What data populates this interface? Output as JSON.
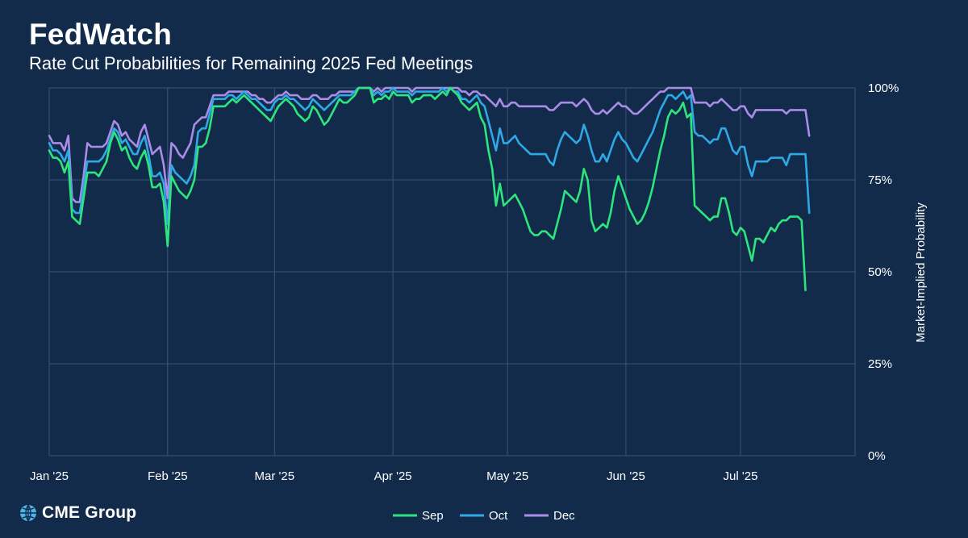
{
  "header": {
    "title": "FedWatch",
    "subtitle": "Rate Cut Probabilities for Remaining 2025 Fed Meetings"
  },
  "logo": {
    "text": "CME Group",
    "icon": "globe-icon"
  },
  "colors": {
    "background": "#132b4b",
    "grid": "#3a5576",
    "sep": "#2ee57d",
    "oct": "#2fa8e6",
    "dec": "#a98ce8"
  },
  "chart_data": {
    "type": "line",
    "title": "FedWatch",
    "subtitle": "Rate Cut Probabilities for Remaining 2025 Fed Meetings",
    "xlabel": "",
    "ylabel": "Market-Implied Probability",
    "x_ticks": [
      "Jan '25",
      "Feb '25",
      "Mar '25",
      "Apr '25",
      "May '25",
      "Jun '25",
      "Jul '25"
    ],
    "x_tick_days": [
      0,
      31,
      59,
      90,
      120,
      151,
      181
    ],
    "x_range_days": [
      0,
      211
    ],
    "y_ticks": [
      "0%",
      "25%",
      "50%",
      "75%",
      "100%"
    ],
    "y_tick_values": [
      0,
      25,
      50,
      75,
      100
    ],
    "ylim": [
      0,
      100
    ],
    "grid": true,
    "legend_position": "bottom-center",
    "x_days": [
      0,
      1,
      2,
      3,
      4,
      5,
      6,
      7,
      8,
      9,
      10,
      11,
      12,
      13,
      14,
      15,
      16,
      17,
      18,
      19,
      20,
      21,
      22,
      23,
      24,
      25,
      26,
      27,
      28,
      29,
      30,
      31,
      32,
      33,
      34,
      35,
      36,
      37,
      38,
      39,
      40,
      41,
      42,
      43,
      44,
      45,
      46,
      47,
      48,
      49,
      50,
      51,
      52,
      53,
      54,
      55,
      56,
      57,
      58,
      59,
      60,
      61,
      62,
      63,
      64,
      65,
      66,
      67,
      68,
      69,
      70,
      71,
      72,
      73,
      74,
      75,
      76,
      77,
      78,
      79,
      80,
      81,
      82,
      83,
      84,
      85,
      86,
      87,
      88,
      89,
      90,
      91,
      92,
      93,
      94,
      95,
      96,
      97,
      98,
      99,
      100,
      101,
      102,
      103,
      104,
      105,
      106,
      107,
      108,
      109,
      110,
      111,
      112,
      113,
      114,
      115,
      116,
      117,
      118,
      119,
      120,
      121,
      122,
      123,
      124,
      125,
      126,
      127,
      128,
      129,
      130,
      131,
      132,
      133,
      134,
      135,
      136,
      137,
      138,
      139,
      140,
      141,
      142,
      143,
      144,
      145,
      146,
      147,
      148,
      149,
      150,
      151,
      152,
      153,
      154,
      155,
      156,
      157,
      158,
      159,
      160,
      161,
      162,
      163,
      164,
      165,
      166,
      167,
      168,
      169,
      170,
      171,
      172,
      173,
      174,
      175,
      176,
      177,
      178,
      179,
      180,
      181,
      182,
      183,
      184,
      185,
      186,
      187,
      188,
      189,
      190,
      191,
      192,
      193,
      194,
      195,
      196,
      197,
      198,
      199,
      200,
      201,
      202,
      203,
      204,
      205,
      206,
      207,
      208,
      209,
      210,
      211
    ],
    "series": [
      {
        "name": "Sep",
        "values": [
          83,
          81,
          81,
          80,
          77,
          80,
          65,
          64,
          63,
          70,
          77,
          77,
          77,
          76,
          78,
          80,
          85,
          88,
          86,
          83,
          84,
          81,
          79,
          78,
          81,
          83,
          79,
          73,
          73,
          74,
          69,
          57,
          76,
          74,
          72,
          71,
          70,
          72,
          75,
          84,
          84,
          85,
          89,
          95,
          95,
          95,
          95,
          96,
          97,
          96,
          97,
          98,
          97,
          96,
          95,
          94,
          93,
          92,
          91,
          93,
          95,
          96,
          97,
          96,
          95,
          93,
          92,
          91,
          92,
          95,
          94,
          92,
          90,
          91,
          93,
          95,
          97,
          96,
          96,
          97,
          98,
          100,
          100,
          100,
          100,
          96,
          97,
          97,
          98,
          97,
          99,
          98,
          98,
          98,
          98,
          96,
          97,
          97,
          98,
          98,
          98,
          97,
          98,
          99,
          98,
          100,
          99,
          98,
          96,
          95,
          94,
          95,
          96,
          92,
          90,
          83,
          78,
          68,
          74,
          68,
          69,
          70,
          71,
          69,
          67,
          64,
          61,
          60,
          60,
          61,
          61,
          60,
          59,
          63,
          67,
          72,
          71,
          70,
          69,
          72,
          78,
          75,
          64,
          61,
          62,
          63,
          62,
          66,
          72,
          76,
          73,
          70,
          67,
          65,
          63,
          64,
          66,
          69,
          73,
          78,
          83,
          87,
          92,
          94,
          93,
          94,
          96,
          92,
          93,
          68,
          67,
          66,
          65,
          64,
          65,
          65,
          70,
          70,
          66,
          61,
          60,
          62,
          61,
          57,
          53,
          59,
          59,
          58,
          60,
          62,
          61,
          63,
          64,
          64,
          65,
          65,
          65,
          64,
          45
        ]
      },
      {
        "name": "Oct",
        "values": [
          85,
          83,
          83,
          82,
          80,
          83,
          67,
          66,
          66,
          73,
          80,
          80,
          80,
          80,
          81,
          83,
          86,
          89,
          88,
          85,
          86,
          84,
          82,
          82,
          85,
          87,
          82,
          76,
          76,
          77,
          74,
          63,
          79,
          77,
          76,
          75,
          74,
          76,
          79,
          88,
          89,
          89,
          93,
          97,
          97,
          97,
          97,
          98,
          98,
          97,
          98,
          99,
          98,
          97,
          97,
          96,
          95,
          94,
          94,
          96,
          97,
          97,
          98,
          97,
          97,
          96,
          95,
          94,
          95,
          97,
          96,
          95,
          94,
          95,
          96,
          97,
          98,
          98,
          98,
          98,
          99,
          100,
          100,
          100,
          100,
          98,
          99,
          98,
          99,
          99,
          100,
          99,
          99,
          99,
          99,
          98,
          99,
          99,
          99,
          99,
          99,
          99,
          99,
          100,
          99,
          100,
          99,
          99,
          97,
          97,
          96,
          97,
          98,
          96,
          95,
          91,
          87,
          83,
          89,
          85,
          85,
          86,
          87,
          85,
          84,
          83,
          82,
          82,
          82,
          82,
          82,
          80,
          79,
          83,
          86,
          88,
          87,
          86,
          85,
          86,
          90,
          87,
          83,
          80,
          80,
          82,
          80,
          83,
          86,
          88,
          86,
          85,
          83,
          81,
          80,
          82,
          84,
          86,
          88,
          91,
          94,
          96,
          98,
          98,
          97,
          98,
          99,
          97,
          98,
          88,
          87,
          87,
          86,
          85,
          86,
          86,
          89,
          89,
          86,
          83,
          82,
          84,
          84,
          79,
          76,
          80,
          80,
          80,
          80,
          81,
          81,
          81,
          81,
          79,
          82,
          82,
          82,
          82,
          82,
          66
        ]
      },
      {
        "name": "Dec",
        "values": [
          87,
          85,
          85,
          85,
          83,
          87,
          70,
          69,
          69,
          76,
          85,
          84,
          84,
          84,
          84,
          85,
          88,
          91,
          90,
          87,
          88,
          86,
          85,
          84,
          88,
          90,
          86,
          82,
          83,
          84,
          79,
          70,
          85,
          84,
          82,
          81,
          83,
          85,
          90,
          91,
          92,
          92,
          95,
          98,
          98,
          98,
          98,
          99,
          99,
          99,
          99,
          99,
          99,
          98,
          98,
          97,
          97,
          96,
          96,
          97,
          98,
          98,
          99,
          98,
          98,
          98,
          97,
          97,
          97,
          98,
          98,
          97,
          97,
          97,
          98,
          98,
          99,
          99,
          99,
          99,
          99,
          100,
          100,
          100,
          100,
          99,
          100,
          99,
          100,
          100,
          100,
          100,
          100,
          100,
          100,
          99,
          100,
          100,
          100,
          100,
          100,
          100,
          100,
          100,
          100,
          100,
          100,
          100,
          99,
          99,
          98,
          99,
          99,
          98,
          98,
          97,
          96,
          95,
          97,
          95,
          95,
          96,
          96,
          95,
          95,
          95,
          95,
          95,
          95,
          95,
          95,
          94,
          94,
          95,
          96,
          96,
          96,
          96,
          95,
          96,
          97,
          96,
          94,
          93,
          93,
          94,
          93,
          94,
          95,
          96,
          95,
          95,
          94,
          93,
          93,
          94,
          95,
          96,
          97,
          98,
          99,
          99,
          100,
          100,
          100,
          100,
          100,
          100,
          100,
          96,
          96,
          96,
          96,
          95,
          96,
          96,
          97,
          96,
          95,
          94,
          94,
          95,
          95,
          93,
          92,
          94,
          94,
          94,
          94,
          94,
          94,
          94,
          94,
          93,
          94,
          94,
          94,
          94,
          94,
          87
        ]
      }
    ]
  }
}
